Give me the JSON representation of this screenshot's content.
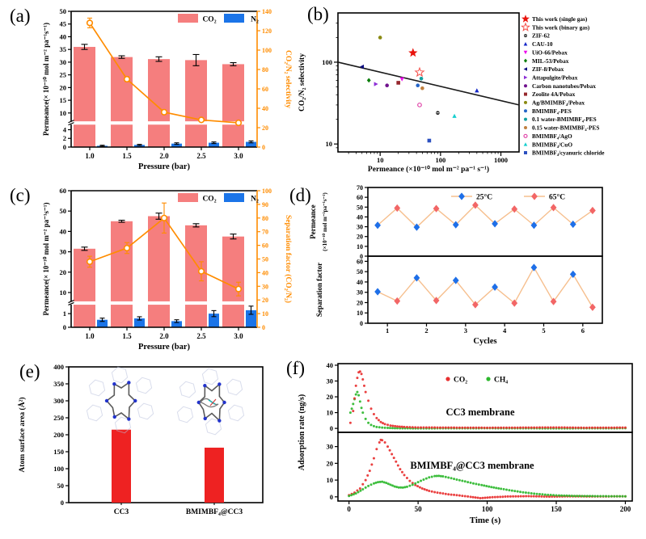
{
  "chart_data": {
    "a": {
      "panel_label": "(a)",
      "type": "bar",
      "xlabel": "Pressure (bar)",
      "ylabel_left": "Permeance(× 10⁻¹⁰ mol m⁻² pa⁻¹s⁻¹)",
      "ylabel_right": "CO₂/N₂ selectivity",
      "categories": [
        "1.0",
        "1.5",
        "2.0",
        "2.5",
        "3.0"
      ],
      "legend": [
        {
          "label": "CO₂",
          "color": "#f57e7e"
        },
        {
          "label": "N₂",
          "color": "#1b74e8"
        }
      ],
      "left_axis": {
        "low_ticks": [
          0,
          2,
          4
        ],
        "low_max": 5,
        "high_min": 7,
        "high_max": 50,
        "high_ticks": [
          10,
          15,
          20,
          25,
          30,
          35,
          40,
          45,
          50
        ]
      },
      "right_axis": {
        "min": 0,
        "max": 140,
        "step": 20,
        "color": "#ff8c00"
      },
      "series": {
        "co2": {
          "name": "CO₂",
          "color": "#f57e7e",
          "values": [
            36,
            32,
            31.2,
            30.8,
            29.2
          ],
          "errors": [
            1.0,
            0.5,
            0.9,
            2.2,
            0.6
          ]
        },
        "n2": {
          "name": "N₂",
          "color": "#1b74e8",
          "values": [
            0.3,
            0.5,
            0.8,
            1.0,
            1.2
          ],
          "errors": [
            0.12,
            0.12,
            0.18,
            0.18,
            0.22
          ]
        },
        "line": {
          "name": "CO₂/N₂ selectivity",
          "color": "#ff8c00",
          "values": [
            128,
            70,
            36,
            28,
            25
          ],
          "errors": [
            5,
            2.5,
            1.5,
            1.5,
            1.5
          ]
        }
      }
    },
    "b": {
      "panel_label": "(b)",
      "type": "scatter",
      "xlabel": "Permeance (×10⁻¹⁰ mol m⁻² pa⁻¹ s⁻¹)",
      "ylabel": "CO₂/N₂ selectivity",
      "x_log_range": [
        2,
        2000
      ],
      "y_log_range": [
        8,
        400
      ],
      "x_ticks": [
        10,
        100,
        1000
      ],
      "y_ticks": [
        10,
        100
      ],
      "bound_line": {
        "x1": 2,
        "y1": 100,
        "x2": 2000,
        "y2": 30
      },
      "points": [
        {
          "label": "This work (single gas)",
          "marker": "star",
          "color": "#e8130c",
          "x": 35,
          "y": 130
        },
        {
          "label": "This work (binary gas)",
          "marker": "star-open",
          "color": "#f4534d",
          "x": 45,
          "y": 75
        },
        {
          "label": "ZIF-62",
          "marker": "sphere",
          "color": "#1a1a1a",
          "x": 90,
          "y": 24
        },
        {
          "label": "CAU-10",
          "marker": "tri-up",
          "color": "#1527c8",
          "x": 400,
          "y": 45
        },
        {
          "label": "UiO-66/Pebax",
          "marker": "tri-down",
          "color": "#ec0cec",
          "x": 23,
          "y": 62
        },
        {
          "label": "MIL-53/Pebax",
          "marker": "diamond",
          "color": "#0b7d0b",
          "x": 6.5,
          "y": 60
        },
        {
          "label": "ZIF-8/Pebax",
          "marker": "tri-left",
          "color": "#0c0c80",
          "x": 5,
          "y": 88
        },
        {
          "label": "Attapulgite/Pebax",
          "marker": "tri-right",
          "color": "#8d2fd6",
          "x": 8.5,
          "y": 54
        },
        {
          "label": "Carbon nanotubes/Pebax",
          "marker": "circle",
          "color": "#70128d",
          "x": 13,
          "y": 52
        },
        {
          "label": "Zeolite 4A/Pebax",
          "marker": "square",
          "color": "#96282d",
          "x": 20,
          "y": 56
        },
        {
          "label": "Ag/BMIMBF₄/Pebax",
          "marker": "circle",
          "color": "#8a8a12",
          "x": 10,
          "y": 200
        },
        {
          "label": "BMIMBF₄-PES",
          "marker": "circle",
          "color": "#2565c8",
          "x": 42,
          "y": 52
        },
        {
          "label": "0.1 water-BMIMBF₄-PES",
          "marker": "circle",
          "color": "#12a0a0",
          "x": 48,
          "y": 63
        },
        {
          "label": "0.15 water-BMIMBF₄-PES",
          "marker": "circle",
          "color": "#c08040",
          "x": 50,
          "y": 48
        },
        {
          "label": "BMIMBF₄/AgO",
          "marker": "circle-open",
          "color": "#e044a8",
          "x": 45,
          "y": 30
        },
        {
          "label": "BMIMBF₄/CuO",
          "marker": "tri-up",
          "color": "#17cfcf",
          "x": 170,
          "y": 22
        },
        {
          "label": "BMIMBF₄/cyanuric chloride",
          "marker": "square",
          "color": "#2c50c0",
          "x": 65,
          "y": 11
        }
      ]
    },
    "c": {
      "panel_label": "(c)",
      "type": "bar",
      "xlabel": "Pressure (bar)",
      "ylabel_left": "Permeance(× 10⁻¹⁰ mol m⁻² pa⁻¹s⁻¹)",
      "ylabel_right": "Separation factor (CO₂/N₂)",
      "categories": [
        "1.0",
        "1.5",
        "2.0",
        "2.5",
        "3.0"
      ],
      "legend": [
        {
          "label": "CO₂",
          "color": "#f57e7e"
        },
        {
          "label": "N₂",
          "color": "#1b74e8"
        }
      ],
      "left_axis": {
        "low_ticks": [
          0,
          1
        ],
        "low_max": 1.6,
        "high_min": 6,
        "high_max": 60,
        "high_ticks": [
          10,
          20,
          30,
          40,
          50,
          60
        ]
      },
      "right_axis": {
        "min": 0,
        "max": 100,
        "step": 10,
        "color": "#ff8c00"
      },
      "series": {
        "co2": {
          "name": "CO₂",
          "color": "#f57e7e",
          "values": [
            31.5,
            45,
            47.5,
            43,
            37.5
          ],
          "errors": [
            0.8,
            0.5,
            1.5,
            0.8,
            1.2
          ]
        },
        "n2": {
          "name": "N₂",
          "color": "#1b74e8",
          "values": [
            0.55,
            0.65,
            0.45,
            1.0,
            1.25
          ],
          "errors": [
            0.12,
            0.12,
            0.1,
            0.22,
            0.3
          ]
        },
        "line": {
          "name": "Separation factor",
          "color": "#ff8c00",
          "values": [
            48,
            58,
            80,
            41,
            28
          ],
          "errors": [
            4,
            4,
            11,
            7,
            5
          ]
        }
      }
    },
    "d": {
      "panel_label": "(d)",
      "type": "line",
      "xlabel": "Cycles",
      "x_ticks": [
        1,
        2,
        3,
        4,
        5,
        6
      ],
      "line_color": "#f6bf8e",
      "legend": [
        {
          "label": "25°C",
          "color": "#1e6fe8"
        },
        {
          "label": "65°C",
          "color": "#f26666"
        }
      ],
      "top": {
        "ylabel": [
          "Permeance",
          "(×10⁻¹⁰ mol m⁻²pa⁻¹s⁻¹)"
        ],
        "ymax": 70,
        "ticks": [
          0,
          10,
          20,
          30,
          40,
          50,
          60,
          70
        ],
        "x25": [
          0.75,
          1.75,
          2.75,
          3.75,
          4.75,
          5.75
        ],
        "y25": [
          31.5,
          29.5,
          32,
          33,
          31.5,
          32.5
        ],
        "x65": [
          1.25,
          2.25,
          3.25,
          4.25,
          5.25,
          6.25
        ],
        "y65": [
          49,
          48.5,
          52,
          48,
          49.5,
          46.5
        ]
      },
      "bottom": {
        "ylabel": [
          "Separation factor"
        ],
        "ymax": 65,
        "ticks": [
          0,
          10,
          20,
          30,
          40,
          50,
          60
        ],
        "x25": [
          0.75,
          1.75,
          2.75,
          3.75,
          4.75,
          5.75
        ],
        "y25": [
          30.5,
          44,
          41.5,
          35,
          54,
          47.5
        ],
        "x65": [
          1.25,
          2.25,
          3.25,
          4.25,
          5.25,
          6.25
        ],
        "y65": [
          21.5,
          22,
          18,
          19.5,
          21,
          15.5
        ]
      }
    },
    "e": {
      "panel_label": "(e)",
      "type": "bar",
      "ylabel": "Atom surface area (Å²)",
      "categories": [
        "CC3",
        "BMIMBF₄@CC3"
      ],
      "values": [
        215,
        162
      ],
      "bar_color": "#ee2222",
      "ymax": 400,
      "y_ticks": [
        0,
        50,
        100,
        150,
        200,
        250,
        300,
        350,
        400
      ]
    },
    "f": {
      "panel_label": "(f)",
      "type": "scatter",
      "xlabel": "Time (s)",
      "x_ticks": [
        0,
        50,
        100,
        150,
        200
      ],
      "ylabel": "Adsorption rate (ng/s)",
      "legend": [
        {
          "label": "CO₂",
          "color": "#e83030"
        },
        {
          "label": "CH₄",
          "color": "#2eb82e"
        }
      ],
      "top": {
        "annotation": "CC3 membrane",
        "ticks": [
          0,
          10,
          20,
          30,
          40
        ],
        "ymax": 41,
        "co2": [
          [
            1,
            3.5
          ],
          [
            3,
            11
          ],
          [
            4,
            19
          ],
          [
            5,
            27
          ],
          [
            6,
            32
          ],
          [
            7,
            35.5
          ],
          [
            8,
            36
          ],
          [
            9,
            34.5
          ],
          [
            10,
            31
          ],
          [
            11,
            27
          ],
          [
            12,
            23
          ],
          [
            14,
            17.5
          ],
          [
            16,
            12.5
          ],
          [
            18,
            9
          ],
          [
            20,
            6.5
          ],
          [
            23,
            4
          ],
          [
            26,
            2.7
          ],
          [
            30,
            1.8
          ],
          [
            35,
            1.2
          ],
          [
            40,
            0.9
          ],
          [
            50,
            0.6
          ],
          [
            70,
            0.5
          ],
          [
            100,
            0.4
          ],
          [
            130,
            0.5
          ],
          [
            150,
            0.6
          ],
          [
            170,
            0.4
          ],
          [
            200,
            0.5
          ]
        ],
        "ch4": [
          [
            1,
            10
          ],
          [
            2,
            12.5
          ],
          [
            3,
            15.5
          ],
          [
            4,
            18.5
          ],
          [
            5,
            21.5
          ],
          [
            6,
            23
          ],
          [
            7,
            21
          ],
          [
            8,
            17
          ],
          [
            9,
            13
          ],
          [
            10,
            10
          ],
          [
            12,
            6
          ],
          [
            14,
            3.5
          ],
          [
            16,
            2.2
          ],
          [
            18,
            1.4
          ],
          [
            20,
            0.9
          ],
          [
            24,
            0.5
          ],
          [
            28,
            0.3
          ],
          [
            35,
            0.1
          ],
          [
            50,
            0
          ],
          [
            100,
            0.1
          ],
          [
            150,
            0
          ],
          [
            200,
            0.1
          ]
        ]
      },
      "bottom": {
        "annotation": "BMIMBF₄@CC3 membrane",
        "ticks": [
          0,
          10,
          20,
          30
        ],
        "ymax": 38.5,
        "co2": [
          [
            0,
            1
          ],
          [
            4,
            2.5
          ],
          [
            8,
            5
          ],
          [
            12,
            10
          ],
          [
            15,
            15.5
          ],
          [
            18,
            23
          ],
          [
            20,
            28.5
          ],
          [
            22,
            32.5
          ],
          [
            23,
            34
          ],
          [
            24,
            33.8
          ],
          [
            26,
            32.5
          ],
          [
            28,
            30
          ],
          [
            31,
            25.5
          ],
          [
            34,
            21
          ],
          [
            37,
            16.5
          ],
          [
            40,
            13
          ],
          [
            44,
            9.5
          ],
          [
            48,
            7
          ],
          [
            53,
            5
          ],
          [
            58,
            3.5
          ],
          [
            64,
            2.5
          ],
          [
            72,
            1.5
          ],
          [
            80,
            0.8
          ],
          [
            88,
            0
          ],
          [
            95,
            -0.8
          ],
          [
            102,
            -0.3
          ],
          [
            115,
            0.2
          ],
          [
            130,
            0.4
          ],
          [
            145,
            0.1
          ],
          [
            160,
            0.3
          ],
          [
            180,
            0.2
          ],
          [
            200,
            0.3
          ]
        ],
        "ch4": [
          [
            0,
            0.5
          ],
          [
            5,
            2
          ],
          [
            10,
            4.5
          ],
          [
            14,
            6.5
          ],
          [
            18,
            8
          ],
          [
            21,
            8.8
          ],
          [
            24,
            9
          ],
          [
            27,
            8.3
          ],
          [
            30,
            7.2
          ],
          [
            33,
            6.2
          ],
          [
            36,
            5.6
          ],
          [
            39,
            5.5
          ],
          [
            42,
            6
          ],
          [
            46,
            7.2
          ],
          [
            50,
            8.8
          ],
          [
            54,
            10.3
          ],
          [
            58,
            11.6
          ],
          [
            62,
            12.4
          ],
          [
            65,
            12.5
          ],
          [
            68,
            12.2
          ],
          [
            72,
            11.5
          ],
          [
            78,
            10.3
          ],
          [
            84,
            9.2
          ],
          [
            90,
            8
          ],
          [
            96,
            7
          ],
          [
            103,
            5.8
          ],
          [
            110,
            4.8
          ],
          [
            118,
            3.7
          ],
          [
            126,
            2.7
          ],
          [
            134,
            1.9
          ],
          [
            142,
            1.3
          ],
          [
            152,
            0.8
          ],
          [
            165,
            0.5
          ],
          [
            180,
            0.4
          ],
          [
            200,
            0.3
          ]
        ]
      }
    }
  }
}
